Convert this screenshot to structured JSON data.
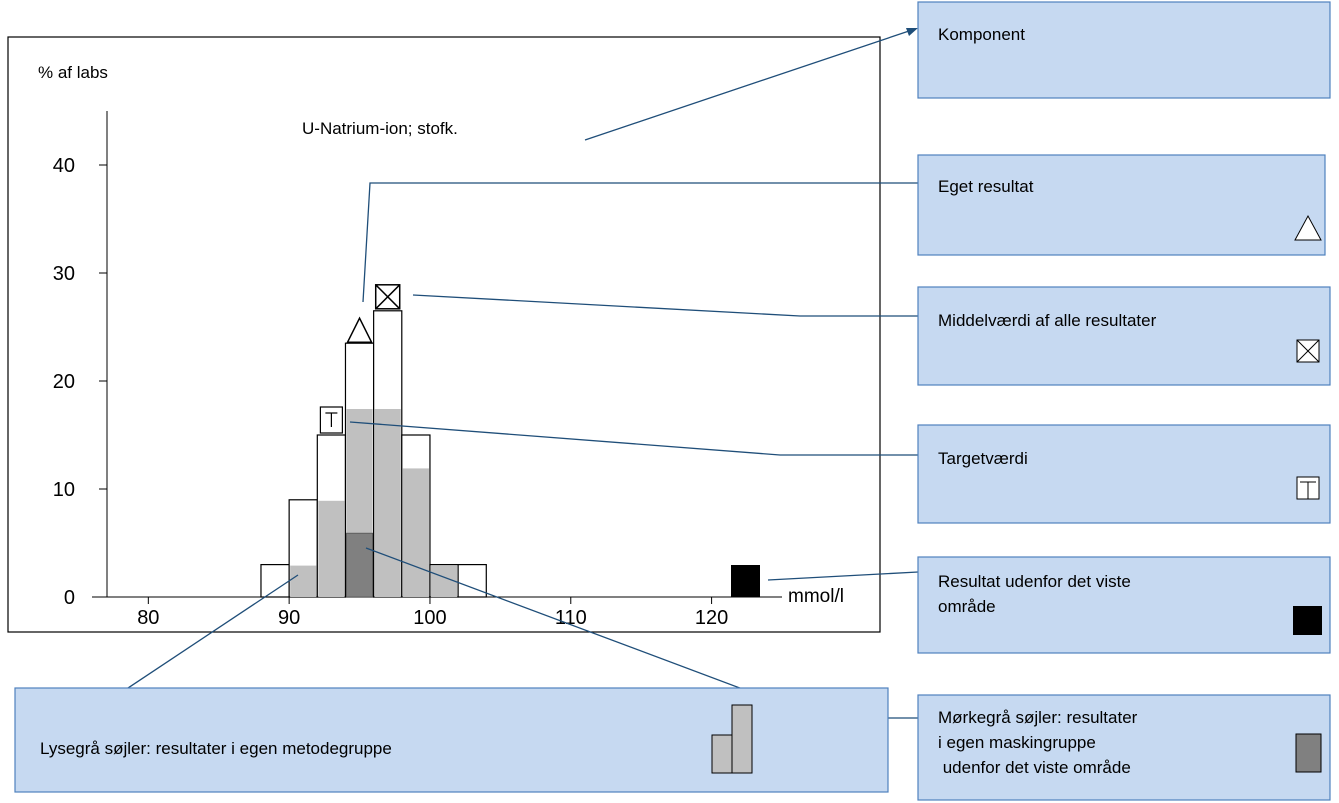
{
  "chart_data": {
    "type": "histogram",
    "title": "U-Natrium-ion; stofk.",
    "y_label": "% af labs",
    "x_label": "mmol/l",
    "bins": [
      88,
      90,
      92,
      94,
      96,
      98,
      100,
      102,
      104
    ],
    "series": [
      {
        "color": "#ffffff",
        "values": [
          3,
          9,
          15,
          23.5,
          26.5,
          15,
          3,
          3
        ]
      },
      {
        "color": "#c0c0c0",
        "values": [
          0,
          3,
          9,
          17.5,
          17.5,
          12,
          3,
          0
        ]
      },
      {
        "color": "#808080",
        "values": [
          0,
          0,
          0,
          6,
          0,
          0,
          0,
          0
        ]
      }
    ],
    "own_result": 95,
    "mean": 97,
    "target": 93,
    "xlim": [
      76,
      125
    ],
    "xticks": [
      80,
      90,
      100,
      110,
      120
    ],
    "ylim": [
      0,
      45
    ],
    "yticks": [
      0,
      10,
      20,
      30,
      40
    ]
  },
  "callouts": [
    {
      "lines": [
        "Komponent"
      ]
    },
    {
      "lines": [
        "Eget resultat"
      ]
    },
    {
      "lines": [
        "Middelværdi af alle resultater"
      ]
    },
    {
      "lines": [
        "Targetværdi"
      ]
    },
    {
      "lines": [
        "Resultat udenfor det viste",
        "område"
      ]
    },
    {
      "lines": [
        "Lysegrå søjler: resultater i egen metodegruppe"
      ]
    },
    {
      "lines": [
        "Mørkegrå søjler: resultater",
        "i egen maskingruppe",
        " udenfor det viste område"
      ]
    }
  ]
}
